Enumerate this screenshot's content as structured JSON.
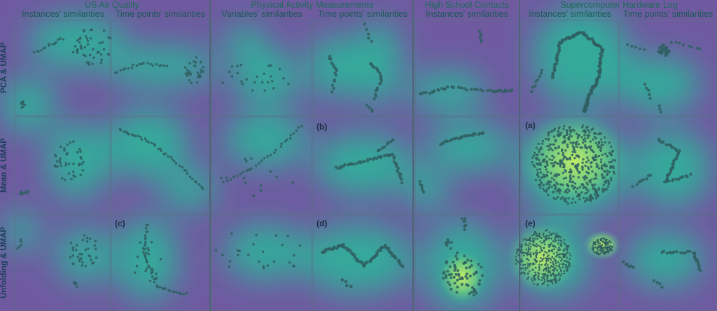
{
  "figure": {
    "datasets": [
      {
        "title": "US Air Quality",
        "columns": [
          "Instances' similarities",
          "Time points' similarities"
        ]
      },
      {
        "title": "Physical Activity Measurements",
        "columns": [
          "Variables' similarities",
          "Time points' similarities"
        ]
      },
      {
        "title": "High School Contacts",
        "columns": [
          "Instances' similarities"
        ]
      },
      {
        "title": "Supercomputer Hardware Log",
        "columns": [
          "Instances' similarities",
          "Time points' similarities"
        ]
      }
    ],
    "rows": [
      "PCA & UMAP",
      "Mean & UMAP",
      "Unfolding & UMAP"
    ],
    "panel_labels": [
      "(a)",
      "(b)",
      "(c)",
      "(d)",
      "(e)"
    ],
    "colors": {
      "background_low": "#6f5aa0",
      "density_mid": "#3aa89a",
      "density_high": "#9ee07a",
      "point": "#2f5f62",
      "dataset_title": "#1e6b5a"
    }
  }
}
